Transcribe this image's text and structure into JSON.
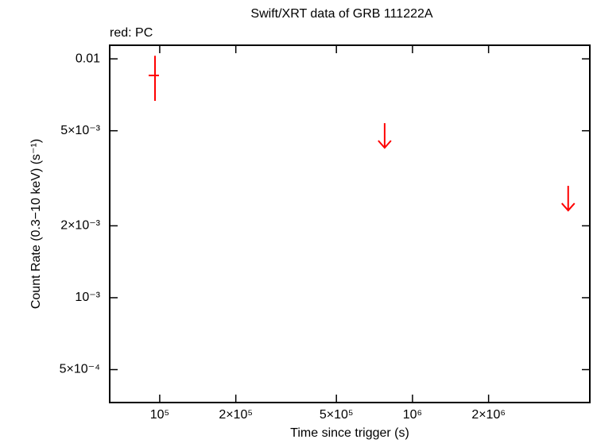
{
  "chart_data": {
    "type": "scatter",
    "title": "Swift/XRT data of GRB 111222A",
    "annotation": "red: PC",
    "x_label": "Time since trigger (s)",
    "y_label": "Count Rate (0.3−10 keV) (s⁻¹)",
    "xscale": "log",
    "yscale": "log",
    "xlim": [
      63400,
      5030000
    ],
    "ylim": [
      0.000364,
      0.0114
    ],
    "xticks": [
      {
        "value": 100000,
        "label": "10⁵"
      },
      {
        "value": 200000,
        "label": "2×10⁵"
      },
      {
        "value": 500000,
        "label": "5×10⁵"
      },
      {
        "value": 1000000,
        "label": "10⁶"
      },
      {
        "value": 2000000,
        "label": "2×10⁶"
      }
    ],
    "yticks": [
      {
        "value": 0.01,
        "label": "0.01"
      },
      {
        "value": 0.005,
        "label": "5×10⁻³"
      },
      {
        "value": 0.002,
        "label": "2×10⁻³"
      },
      {
        "value": 0.001,
        "label": "10⁻³"
      },
      {
        "value": 0.0005,
        "label": "5×10⁻⁴"
      }
    ],
    "series": [
      {
        "color": "#ff0000",
        "x": [
          95800
        ],
        "x_low": [
          90400
        ],
        "x_high": [
          99300
        ],
        "values": [
          0.00852
        ],
        "y_low": [
          0.00667
        ],
        "y_high": [
          0.0103
        ]
      },
      {
        "color": "#ff0000",
        "upper_limit": true,
        "x": [
          776000,
          4130000
        ],
        "values": [
          0.00538,
          0.00294
        ]
      }
    ]
  }
}
